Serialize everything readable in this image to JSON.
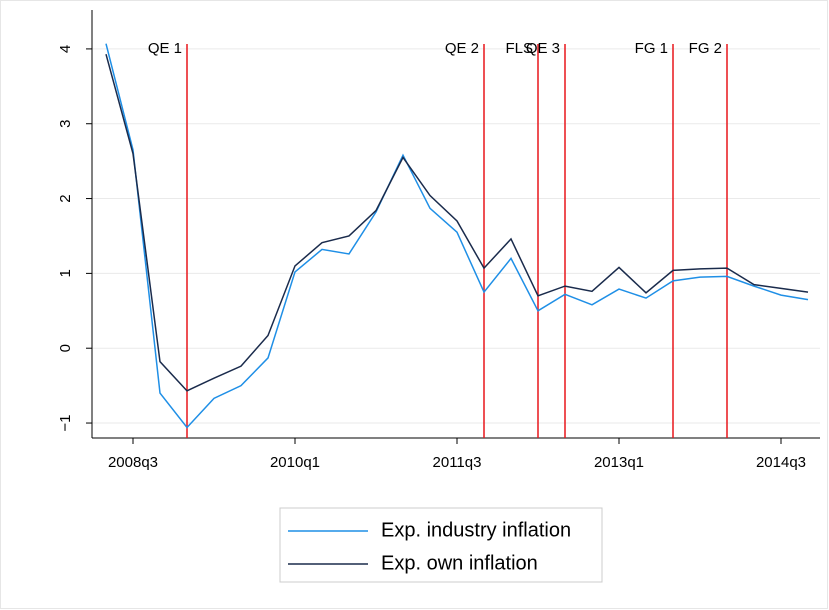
{
  "chart_data": {
    "type": "line",
    "categories": [
      null,
      "2008q3",
      null,
      null,
      null,
      null,
      null,
      "2010q1",
      null,
      null,
      null,
      null,
      null,
      "2011q3",
      null,
      null,
      null,
      null,
      null,
      "2013q1",
      null,
      null,
      null,
      null,
      null,
      "2014q3",
      null
    ],
    "series": [
      {
        "name": "Exp. industry inflation",
        "color": "#1f8fe6",
        "values": [
          4.07,
          2.65,
          -0.6,
          -1.06,
          -0.67,
          -0.5,
          -0.13,
          1.02,
          1.32,
          1.26,
          1.82,
          2.58,
          1.87,
          1.55,
          0.75,
          1.2,
          0.5,
          0.72,
          0.58,
          0.79,
          0.67,
          0.9,
          0.95,
          0.96,
          0.83,
          0.71,
          0.65
        ]
      },
      {
        "name": "Exp. own inflation",
        "color": "#1a2b4c",
        "values": [
          3.93,
          2.6,
          -0.18,
          -0.57,
          -0.4,
          -0.24,
          0.17,
          1.1,
          1.41,
          1.5,
          1.84,
          2.55,
          2.04,
          1.7,
          1.07,
          1.46,
          0.7,
          0.83,
          0.76,
          1.08,
          0.74,
          1.04,
          1.06,
          1.07,
          0.85,
          0.8,
          0.75
        ]
      }
    ],
    "annotations": [
      {
        "label": "QE 1",
        "x": 3
      },
      {
        "label": "QE 2",
        "x": 14
      },
      {
        "label": "FLS",
        "x": 16
      },
      {
        "label": "QE 3",
        "x": 17
      },
      {
        "label": "FG 1",
        "x": 21
      },
      {
        "label": "FG 2",
        "x": 23
      }
    ],
    "annotation_color": "#e8161c",
    "ylim": [
      -1.2,
      4.52
    ],
    "yticks": [
      {
        "value": -1,
        "label": "−1"
      },
      0,
      1,
      2,
      3,
      4
    ],
    "grid": true
  }
}
